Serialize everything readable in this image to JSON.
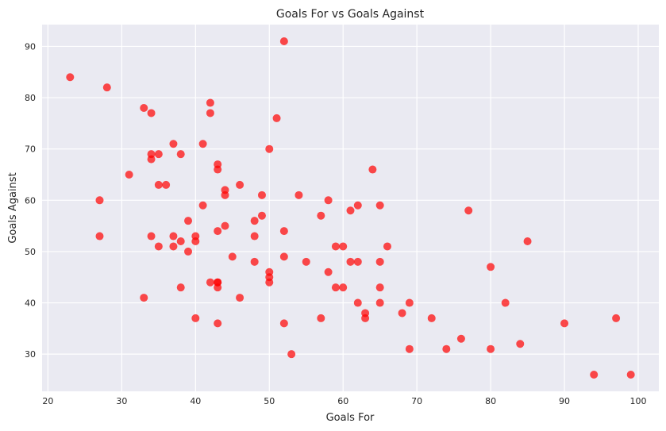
{
  "chart_data": {
    "type": "scatter",
    "title": "Goals For vs Goals Against",
    "xlabel": "Goals For",
    "ylabel": "Goals Against",
    "xlim": [
      19.2,
      102.8
    ],
    "ylim": [
      22.75,
      94.25
    ],
    "xticks": [
      20,
      30,
      40,
      50,
      60,
      70,
      80,
      90,
      100
    ],
    "yticks": [
      30,
      40,
      50,
      60,
      70,
      80,
      90
    ],
    "grid": true,
    "colors": {
      "background": "#eaeaf2",
      "grid": "#ffffff",
      "point": "#ff0000"
    },
    "x": [
      23,
      28,
      27,
      27,
      31,
      33,
      33,
      34,
      34,
      34,
      34,
      35,
      35,
      35,
      36,
      37,
      37,
      37,
      38,
      38,
      38,
      39,
      39,
      40,
      40,
      40,
      41,
      41,
      42,
      42,
      42,
      43,
      43,
      43,
      43,
      43,
      43,
      43,
      44,
      44,
      44,
      45,
      46,
      46,
      48,
      48,
      48,
      49,
      49,
      50,
      50,
      50,
      50,
      51,
      52,
      52,
      52,
      52,
      53,
      54,
      55,
      57,
      57,
      58,
      58,
      59,
      59,
      60,
      60,
      61,
      61,
      62,
      62,
      62,
      63,
      63,
      64,
      65,
      65,
      65,
      65,
      66,
      68,
      69,
      69,
      72,
      74,
      76,
      77,
      80,
      80,
      82,
      84,
      85,
      90,
      94,
      97,
      99
    ],
    "y": [
      84,
      82,
      60,
      53,
      65,
      78,
      41,
      77,
      69,
      68,
      53,
      69,
      63,
      51,
      63,
      71,
      53,
      51,
      69,
      52,
      43,
      56,
      50,
      53,
      52,
      37,
      71,
      59,
      79,
      77,
      44,
      67,
      66,
      54,
      44,
      43,
      36,
      44,
      62,
      61,
      55,
      49,
      63,
      41,
      56,
      53,
      48,
      61,
      57,
      70,
      46,
      45,
      44,
      76,
      91,
      54,
      49,
      36,
      30,
      61,
      48,
      57,
      37,
      60,
      46,
      51,
      43,
      51,
      43,
      58,
      48,
      59,
      48,
      40,
      38,
      37,
      66,
      59,
      48,
      43,
      40,
      51,
      38,
      40,
      31,
      37,
      31,
      33,
      58,
      47,
      31,
      40,
      32,
      52,
      36,
      26,
      37,
      26
    ]
  }
}
